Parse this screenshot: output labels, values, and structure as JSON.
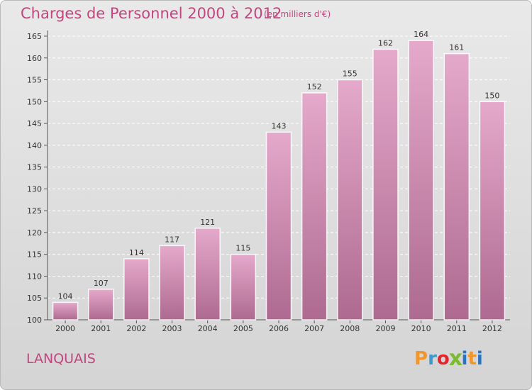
{
  "header": {
    "title": "Charges de Personnel 2000 à 2012",
    "subtitle": "(en milliers d'€)"
  },
  "footer": {
    "commune": "LANQUAIS",
    "logo": {
      "letters": [
        "P",
        "r",
        "o",
        "x",
        "i",
        "t",
        "i"
      ],
      "colors": [
        "#f0962a",
        "#3c9ad3",
        "#e3262b",
        "#7dbb2e",
        "#2a74c2",
        "#f0962a",
        "#2a74c2"
      ]
    }
  },
  "colors": {
    "accent": "#c4457f",
    "bar_top": "#e4a9cb",
    "bar_bottom": "#ae6a90"
  },
  "chart_data": {
    "type": "bar",
    "categories": [
      "2000",
      "2001",
      "2002",
      "2003",
      "2004",
      "2005",
      "2006",
      "2007",
      "2008",
      "2009",
      "2010",
      "2011",
      "2012"
    ],
    "values": [
      104,
      107,
      114,
      117,
      121,
      115,
      143,
      152,
      155,
      162,
      164,
      161,
      150
    ],
    "title": "Charges de Personnel 2000 à 2012",
    "ylim": [
      100,
      165
    ],
    "yticks": [
      100,
      105,
      110,
      115,
      120,
      125,
      130,
      135,
      140,
      145,
      150,
      155,
      160,
      165
    ],
    "grid": true
  }
}
